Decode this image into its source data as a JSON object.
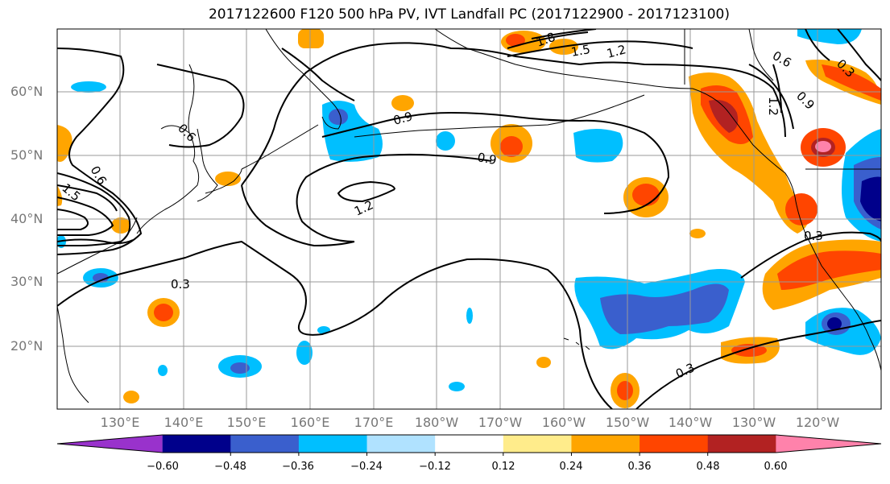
{
  "title": "2017122600 F120 500 hPa PV, IVT Landfall PC (2017122900 - 2017123100)",
  "lat_labels": [
    "60°N",
    "50°N",
    "40°N",
    "30°N",
    "20°N"
  ],
  "lon_labels": [
    "130°E",
    "140°E",
    "150°E",
    "160°E",
    "170°E",
    "180°W",
    "170°W",
    "160°W",
    "150°W",
    "140°W",
    "130°W",
    "120°W"
  ],
  "colorbar": {
    "colors": [
      "#9932cc",
      "#00008b",
      "#3a5fcd",
      "#00bfff",
      "#b0e2ff",
      "#ffffff",
      "#ffec8b",
      "#ffa500",
      "#ff4500",
      "#b22222",
      "#ff82ab"
    ],
    "ticks": [
      "−0.60",
      "−0.48",
      "−0.36",
      "−0.24",
      "−0.12",
      "0.12",
      "0.24",
      "0.36",
      "0.48",
      "0.60"
    ]
  },
  "contour_labels": [
    "0.3",
    "0.3",
    "0.3",
    "0.6",
    "0.6",
    "0.6",
    "0.9",
    "0.9",
    "0.9",
    "1.2",
    "1.2",
    "1.2",
    "1.5",
    "1.5",
    "1.8",
    "0.3"
  ]
}
